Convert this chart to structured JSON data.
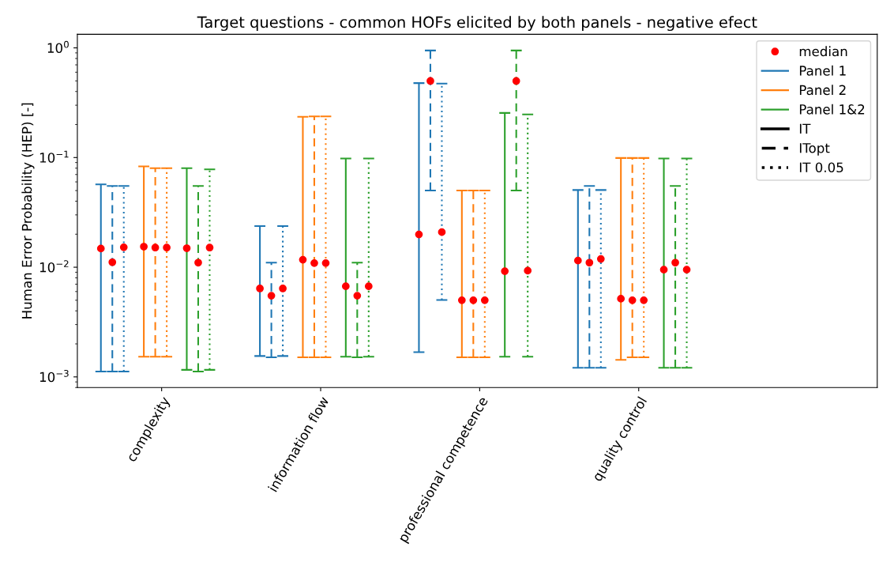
{
  "chart_data": {
    "type": "scatter",
    "title": "Target questions - common HOFs elicited by both panels - negative efect",
    "ylabel": "Human Error Probability (HEP) [-]",
    "categories": [
      "complexity",
      "information flow",
      "professional competence",
      "quality control"
    ],
    "log": "y",
    "ylim": [
      0.0008,
      1.33
    ],
    "yticks": [
      {
        "value": 0.001,
        "label": "10$^{−3}$"
      },
      {
        "value": 0.01,
        "label": "10$^{−2}$"
      },
      {
        "value": 0.1,
        "label": "10$^{−1}$"
      },
      {
        "value": 1,
        "label": "10$^{0}$"
      }
    ],
    "grid": false,
    "legend": "top right",
    "series": [
      {
        "name": "median",
        "type": "scatter",
        "color": "#ff0000",
        "marker": "circle",
        "values": [
          null,
          null,
          null,
          null
        ]
      },
      {
        "name": "Panel 1",
        "type": "line",
        "color": "#1f77b4",
        "line_style": "solid",
        "values": [
          null,
          null,
          null,
          null
        ]
      },
      {
        "name": "Panel 2",
        "type": "line",
        "color": "#ff7f0e",
        "line_style": "solid",
        "values": [
          null,
          null,
          null,
          null
        ]
      },
      {
        "name": "Panel 1&2",
        "type": "line",
        "color": "#2ca02c",
        "line_style": "solid",
        "values": [
          null,
          null,
          null,
          null
        ]
      },
      {
        "name": "IT",
        "type": "line",
        "color": "#000000",
        "line_style": "solid",
        "values": [
          null,
          null,
          null,
          null
        ]
      },
      {
        "name": "ITopt",
        "type": "line",
        "color": "#000000",
        "line_style": "dashed",
        "values": [
          null,
          null,
          null,
          null
        ]
      },
      {
        "name": "IT 0.05",
        "type": "line",
        "color": "#000000",
        "line_style": "dotted",
        "values": [
          null,
          null,
          null,
          null
        ]
      },
      {
        "line_style": "solid",
        "values": [
          0.0148,
          0.0064,
          0.0199,
          0.0115
        ],
        "errors": [
          [
            0.00112,
            0.057
          ],
          [
            0.00155,
            0.0237
          ],
          [
            0.00168,
            0.477
          ],
          [
            0.00121,
            0.0506
          ]
        ]
      },
      {
        "line_style": "dashed",
        "values": [
          0.0111,
          0.0055,
          0.499,
          0.011
        ],
        "errors": [
          [
            0.00112,
            0.055
          ],
          [
            0.00151,
            0.011
          ],
          [
            0.05,
            0.946
          ],
          [
            0.00121,
            0.055
          ]
        ]
      },
      {
        "line_style": "dotted",
        "values": [
          0.0152,
          0.0064,
          0.0209,
          0.0119
        ],
        "errors": [
          [
            0.00112,
            0.055
          ],
          [
            0.00155,
            0.0237
          ],
          [
            0.00502,
            0.472
          ],
          [
            0.00121,
            0.0506
          ]
        ]
      },
      {
        "line_style": "solid",
        "values": [
          0.0154,
          0.0117,
          0.005,
          0.00516
        ],
        "errors": [
          [
            0.00153,
            0.083
          ],
          [
            0.00151,
            0.235
          ],
          [
            0.00151,
            0.05
          ],
          [
            0.00143,
            0.099
          ]
        ]
      },
      {
        "line_style": "dashed",
        "values": [
          0.0151,
          0.0109,
          0.005,
          0.005
        ],
        "errors": [
          [
            0.00153,
            0.08
          ],
          [
            0.00151,
            0.237
          ],
          [
            0.00151,
            0.05
          ],
          [
            0.00151,
            0.099
          ]
        ]
      },
      {
        "line_style": "dotted",
        "values": [
          0.0151,
          0.0109,
          0.005,
          0.005
        ],
        "errors": [
          [
            0.00153,
            0.08
          ],
          [
            0.00151,
            0.237
          ],
          [
            0.00151,
            0.05
          ],
          [
            0.00151,
            0.099
          ]
        ]
      },
      {
        "line_style": "solid",
        "values": [
          0.0149,
          0.0067,
          0.0092,
          0.0095
        ],
        "errors": [
          [
            0.00116,
            0.08
          ],
          [
            0.00153,
            0.098
          ],
          [
            0.00153,
            0.255
          ],
          [
            0.00121,
            0.098
          ]
        ]
      },
      {
        "line_style": "dashed",
        "values": [
          0.011,
          0.0055,
          0.499,
          0.011
        ],
        "errors": [
          [
            0.00112,
            0.055
          ],
          [
            0.00151,
            0.011
          ],
          [
            0.05,
            0.946
          ],
          [
            0.00121,
            0.055
          ]
        ]
      },
      {
        "line_style": "dotted",
        "values": [
          0.0151,
          0.0067,
          0.0093,
          0.0095
        ],
        "errors": [
          [
            0.00116,
            0.078
          ],
          [
            0.00153,
            0.098
          ],
          [
            0.00153,
            0.247
          ],
          [
            0.00121,
            0.098
          ]
        ]
      }
    ]
  }
}
